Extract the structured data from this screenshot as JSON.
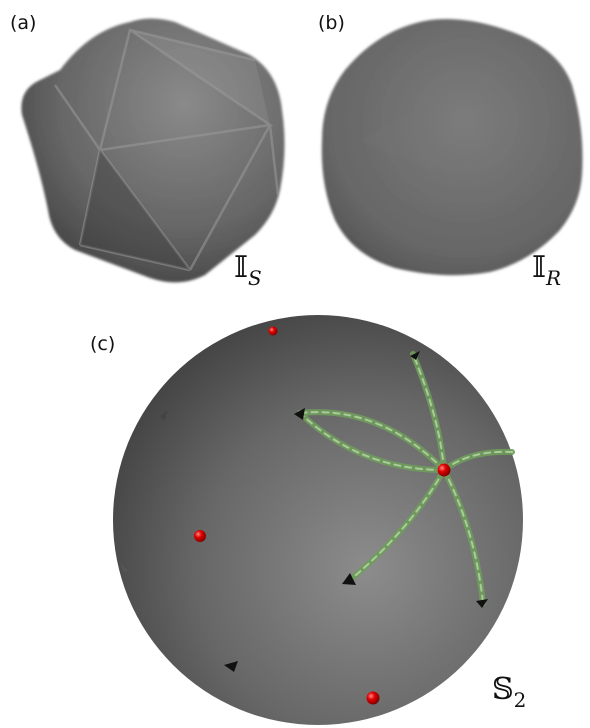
{
  "panels": [
    {
      "id": "a",
      "label": "(a)",
      "math_symbol": "𝕀",
      "math_subscript": "S"
    },
    {
      "id": "b",
      "label": "(b)",
      "math_symbol": "𝕀",
      "math_subscript": "R"
    },
    {
      "id": "c",
      "label": "(c)",
      "math_symbol": "𝕊",
      "math_subscript": "2"
    }
  ],
  "colors": {
    "surface_gray": "#6e6e6e",
    "red_point": "#e00000",
    "green_arc": "#7fae6a",
    "triangle_marker": "#111111",
    "background": "#ffffff"
  }
}
